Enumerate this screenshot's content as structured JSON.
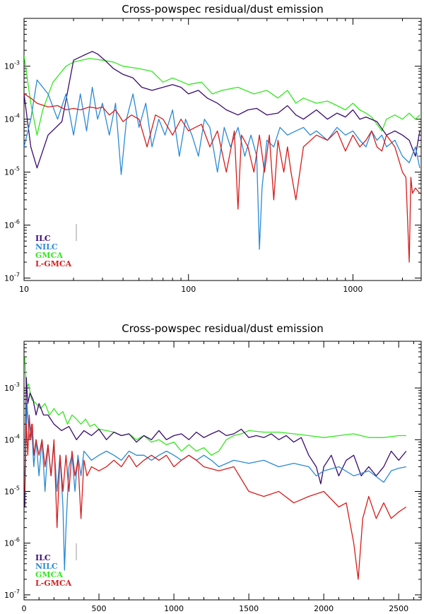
{
  "chart_data": [
    {
      "type": "line",
      "title": "Cross-powspec residual/dust emission",
      "xscale": "log",
      "yscale": "log",
      "xlim": [
        10,
        2600
      ],
      "ylim": [
        9e-08,
        0.008
      ],
      "xticks": [
        {
          "v": 10,
          "label": "10"
        },
        {
          "v": 100,
          "label": "100"
        },
        {
          "v": 1000,
          "label": "1000"
        }
      ],
      "yticks": [
        {
          "v": 1e-07,
          "m": "10",
          "e": "-7"
        },
        {
          "v": 1e-06,
          "m": "10",
          "e": "-6"
        },
        {
          "v": 1e-05,
          "m": "10",
          "e": "-5"
        },
        {
          "v": 0.0001,
          "m": "10",
          "e": "-4"
        },
        {
          "v": 0.001,
          "m": "10",
          "e": "-3"
        }
      ],
      "legend_position": "bottom-left",
      "series": [
        {
          "name": "ILC",
          "color": "#3b0a6e",
          "x": [
            10,
            11,
            12,
            14,
            17,
            20,
            23,
            26,
            28,
            31,
            35,
            40,
            46,
            52,
            60,
            70,
            80,
            90,
            100,
            115,
            130,
            150,
            170,
            200,
            230,
            260,
            300,
            350,
            400,
            450,
            500,
            600,
            700,
            800,
            900,
            1000,
            1100,
            1200,
            1400,
            1600,
            1800,
            2000,
            2200,
            2400,
            2550
          ],
          "y": [
            0.0003,
            3e-05,
            1.2e-05,
            5e-05,
            9e-05,
            0.0013,
            0.0016,
            0.0019,
            0.0017,
            0.0013,
            0.0009,
            0.0007,
            0.0006,
            0.0004,
            0.00035,
            0.0004,
            0.00045,
            0.0004,
            0.0003,
            0.00035,
            0.00025,
            0.0002,
            0.00015,
            0.00012,
            0.00015,
            0.00016,
            0.00012,
            0.00013,
            0.00018,
            0.00012,
            0.0001,
            0.00015,
            0.0001,
            0.00013,
            0.00011,
            0.00015,
            0.0001,
            0.00011,
            9e-05,
            5e-05,
            6e-05,
            5e-05,
            4e-05,
            2e-05,
            6e-05
          ]
        },
        {
          "name": "NILC",
          "color": "#2a8ad4",
          "x": [
            10,
            11,
            12,
            14,
            16,
            18,
            20,
            22,
            24,
            26,
            28,
            30,
            33,
            36,
            39,
            42,
            46,
            50,
            55,
            60,
            66,
            72,
            80,
            88,
            96,
            105,
            115,
            125,
            135,
            150,
            165,
            180,
            200,
            220,
            240,
            260,
            270,
            280,
            300,
            330,
            360,
            400,
            450,
            500,
            550,
            600,
            700,
            800,
            900,
            1000,
            1100,
            1200,
            1300,
            1400,
            1500,
            1600,
            1800,
            2000,
            2200,
            2400,
            2550
          ],
          "y": [
            3e-05,
            0.0001,
            0.00055,
            0.0003,
            0.0001,
            0.0003,
            5e-05,
            0.0003,
            6e-05,
            0.0004,
            0.0001,
            0.0002,
            5e-05,
            0.0002,
            9e-06,
            0.0001,
            0.0003,
            7e-05,
            0.0002,
            3e-05,
            0.0001,
            5e-05,
            0.00015,
            2e-05,
            0.0001,
            5e-05,
            2e-05,
            0.0001,
            7e-05,
            1e-05,
            7e-05,
            3e-05,
            7e-05,
            2e-05,
            5e-05,
            2e-05,
            3.5e-07,
            5e-06,
            4e-05,
            3e-05,
            7e-05,
            5e-05,
            6e-05,
            7e-05,
            5e-05,
            6e-05,
            4e-05,
            7e-05,
            5e-05,
            6e-05,
            4e-05,
            3e-05,
            6e-05,
            4e-05,
            5e-05,
            3e-05,
            4e-05,
            2e-05,
            1.5e-05,
            3e-05,
            1.2e-05
          ]
        },
        {
          "name": "GMCA",
          "color": "#33e81f",
          "x": [
            10,
            11,
            12,
            13,
            15,
            18,
            20,
            25,
            30,
            35,
            40,
            50,
            60,
            70,
            80,
            100,
            120,
            140,
            160,
            200,
            250,
            300,
            350,
            400,
            450,
            500,
            600,
            700,
            800,
            900,
            1000,
            1100,
            1200,
            1300,
            1400,
            1500,
            1600,
            1800,
            2000,
            2200,
            2400,
            2550
          ],
          "y": [
            0.0016,
            0.0002,
            5e-05,
            0.00015,
            0.0005,
            0.001,
            0.0012,
            0.0014,
            0.0013,
            0.0012,
            0.001,
            0.0009,
            0.0008,
            0.0005,
            0.0006,
            0.00045,
            0.0005,
            0.0003,
            0.00035,
            0.0004,
            0.0003,
            0.00035,
            0.00025,
            0.00035,
            0.0002,
            0.00025,
            0.0002,
            0.00022,
            0.00018,
            0.00015,
            0.0002,
            0.00015,
            0.00013,
            0.00011,
            8e-05,
            6e-05,
            0.0001,
            0.00012,
            0.0001,
            0.00013,
            0.0001,
            0.00012
          ]
        },
        {
          "name": "L-GMCA",
          "color": "#d81c1c",
          "x": [
            10,
            11,
            12,
            14,
            16,
            18,
            20,
            22,
            25,
            28,
            30,
            33,
            36,
            40,
            45,
            50,
            56,
            63,
            70,
            80,
            90,
            100,
            110,
            120,
            135,
            150,
            170,
            190,
            200,
            210,
            230,
            250,
            270,
            290,
            310,
            330,
            350,
            380,
            400,
            420,
            450,
            500,
            600,
            700,
            800,
            900,
            1000,
            1100,
            1200,
            1300,
            1400,
            1500,
            1600,
            1800,
            2000,
            2100,
            2200,
            2250,
            2300,
            2400,
            2550
          ],
          "y": [
            0.0003,
            0.00025,
            0.0002,
            0.00017,
            0.00018,
            0.00015,
            0.00016,
            0.00015,
            0.00017,
            0.00016,
            0.00017,
            0.00012,
            0.00015,
            9e-05,
            0.00012,
            0.0001,
            3e-05,
            0.00012,
            0.0001,
            5e-05,
            0.0001,
            6e-05,
            7e-05,
            8e-05,
            3e-05,
            6e-05,
            1e-05,
            6e-05,
            2e-06,
            5e-05,
            3e-05,
            1e-05,
            5e-05,
            1e-05,
            5e-05,
            3e-06,
            4e-05,
            1e-05,
            3e-05,
            1e-05,
            3e-06,
            3e-05,
            5e-05,
            4e-05,
            6e-05,
            2.5e-05,
            5e-05,
            3e-05,
            4e-05,
            6e-05,
            3e-05,
            2.5e-05,
            5e-05,
            3e-05,
            1e-05,
            8e-06,
            2e-07,
            8e-06,
            4e-06,
            5e-06,
            4e-06
          ]
        }
      ],
      "legend": [
        "ILC",
        "NILC",
        "GMCA",
        "L-GMCA"
      ]
    },
    {
      "type": "line",
      "title": "Cross-powspec residual/dust emission",
      "xscale": "linear",
      "yscale": "log",
      "xlim": [
        0,
        2650
      ],
      "ylim": [
        8e-08,
        0.008
      ],
      "xticks": [
        {
          "v": 0,
          "label": "0"
        },
        {
          "v": 500,
          "label": "500"
        },
        {
          "v": 1000,
          "label": "1000"
        },
        {
          "v": 1500,
          "label": "1500"
        },
        {
          "v": 2000,
          "label": "2000"
        },
        {
          "v": 2500,
          "label": "2500"
        }
      ],
      "yticks": [
        {
          "v": 1e-07,
          "m": "10",
          "e": "-7"
        },
        {
          "v": 1e-06,
          "m": "10",
          "e": "-6"
        },
        {
          "v": 1e-05,
          "m": "10",
          "e": "-5"
        },
        {
          "v": 0.0001,
          "m": "10",
          "e": "-4"
        },
        {
          "v": 0.001,
          "m": "10",
          "e": "-3"
        }
      ],
      "legend_position": "bottom-left",
      "series": [
        {
          "name": "ILC",
          "color": "#3b0a6e",
          "x": [
            5,
            15,
            25,
            40,
            60,
            80,
            100,
            130,
            160,
            200,
            250,
            300,
            350,
            400,
            450,
            500,
            550,
            600,
            650,
            700,
            750,
            800,
            850,
            900,
            950,
            1000,
            1050,
            1100,
            1150,
            1200,
            1250,
            1300,
            1350,
            1400,
            1450,
            1500,
            1550,
            1600,
            1650,
            1700,
            1750,
            1800,
            1850,
            1900,
            1950,
            1980,
            2000,
            2050,
            2100,
            2150,
            2200,
            2250,
            2300,
            2350,
            2400,
            2450,
            2500,
            2550
          ],
          "y": [
            5e-06,
            0.0016,
            0.0005,
            0.0008,
            0.0006,
            0.0003,
            0.0005,
            0.0003,
            0.0003,
            0.0002,
            0.00015,
            0.00018,
            0.0001,
            0.00015,
            0.00012,
            0.00016,
            0.0001,
            0.00014,
            0.00012,
            0.00013,
            9e-05,
            0.00012,
            0.0001,
            0.00015,
            0.0001,
            0.00012,
            0.00013,
            0.0001,
            0.00014,
            0.00011,
            0.00013,
            0.00015,
            0.00012,
            0.00013,
            0.00016,
            0.00011,
            0.00012,
            0.00011,
            0.00013,
            0.0001,
            0.00012,
            9e-05,
            0.00011,
            5e-05,
            3e-05,
            1.4e-05,
            3e-05,
            5e-05,
            2e-05,
            4e-05,
            5e-05,
            2e-05,
            3e-05,
            2e-05,
            3e-05,
            6e-05,
            4e-05,
            6e-05
          ]
        },
        {
          "name": "NILC",
          "color": "#2a8ad4",
          "x": [
            5,
            20,
            35,
            50,
            65,
            80,
            100,
            120,
            140,
            160,
            180,
            200,
            220,
            240,
            260,
            270,
            280,
            300,
            320,
            340,
            360,
            380,
            400,
            450,
            500,
            550,
            600,
            650,
            700,
            750,
            800,
            850,
            900,
            950,
            1000,
            1050,
            1100,
            1150,
            1200,
            1250,
            1300,
            1400,
            1500,
            1600,
            1700,
            1800,
            1900,
            1950,
            2000,
            2100,
            2200,
            2300,
            2400,
            2450,
            2500,
            2550
          ],
          "y": [
            2e-05,
            0.0005,
            0.0001,
            0.0002,
            3e-05,
            0.0001,
            2e-05,
            0.0001,
            1e-05,
            8e-05,
            2e-05,
            8e-05,
            1e-05,
            5e-05,
            5e-06,
            3e-07,
            2e-06,
            3e-05,
            5e-05,
            1e-05,
            5e-05,
            2e-05,
            6e-05,
            4e-05,
            5e-05,
            6e-05,
            5e-05,
            4e-05,
            6e-05,
            5e-05,
            5e-05,
            4e-05,
            5e-05,
            6e-05,
            5e-05,
            4e-05,
            5e-05,
            4e-05,
            5e-05,
            4e-05,
            3e-05,
            4e-05,
            3.5e-05,
            4e-05,
            3e-05,
            3.5e-05,
            3e-05,
            2e-05,
            2.5e-05,
            3e-05,
            2e-05,
            2.5e-05,
            1.5e-05,
            2.5e-05,
            2.8e-05,
            3e-05
          ]
        },
        {
          "name": "GMCA",
          "color": "#33e81f",
          "x": [
            5,
            15,
            30,
            50,
            80,
            110,
            140,
            170,
            200,
            230,
            260,
            290,
            320,
            350,
            380,
            410,
            440,
            470,
            500,
            550,
            600,
            650,
            700,
            750,
            800,
            850,
            900,
            950,
            1000,
            1050,
            1100,
            1150,
            1200,
            1250,
            1300,
            1350,
            1400,
            1450,
            1500,
            1600,
            1700,
            1800,
            1900,
            2000,
            2100,
            2200,
            2300,
            2400,
            2500,
            2550
          ],
          "y": [
            0.004,
            0.001,
            0.0012,
            0.0006,
            0.0005,
            0.0004,
            0.0005,
            0.0003,
            0.0004,
            0.0003,
            0.00035,
            0.0002,
            0.0003,
            0.00025,
            0.0002,
            0.00025,
            0.00018,
            0.0002,
            0.00016,
            0.00015,
            0.00014,
            0.00012,
            0.00013,
            0.0001,
            0.00012,
            9e-05,
            0.0001,
            8e-05,
            9e-05,
            6e-05,
            8e-05,
            6e-05,
            7e-05,
            5e-05,
            6e-05,
            0.0001,
            0.00012,
            0.00013,
            0.00015,
            0.00014,
            0.00014,
            0.00013,
            0.00012,
            0.00011,
            0.00012,
            0.00013,
            0.00011,
            0.00011,
            0.00012,
            0.00012
          ]
        },
        {
          "name": "L-GMCA",
          "color": "#d81c1c",
          "x": [
            5,
            15,
            25,
            35,
            45,
            55,
            65,
            80,
            100,
            120,
            140,
            160,
            180,
            200,
            220,
            240,
            260,
            280,
            300,
            320,
            340,
            360,
            380,
            400,
            420,
            450,
            500,
            550,
            600,
            650,
            700,
            750,
            800,
            850,
            900,
            950,
            1000,
            1050,
            1100,
            1150,
            1200,
            1300,
            1400,
            1500,
            1600,
            1700,
            1800,
            1900,
            2000,
            2100,
            2150,
            2200,
            2230,
            2260,
            2300,
            2350,
            2400,
            2450,
            2500,
            2550
          ],
          "y": [
            1e-05,
            0.0002,
            5e-05,
            0.0003,
            0.0001,
            0.0002,
            5e-05,
            0.0001,
            5e-05,
            0.0001,
            3e-05,
            8e-05,
            2e-05,
            0.0001,
            2e-06,
            5e-05,
            1e-05,
            5e-05,
            1e-05,
            6e-05,
            2e-05,
            4e-05,
            3e-06,
            4e-05,
            2e-05,
            3e-05,
            2.5e-05,
            3e-05,
            4e-05,
            3e-05,
            5e-05,
            3e-05,
            4e-05,
            5e-05,
            4e-05,
            5e-05,
            3e-05,
            4e-05,
            5e-05,
            4e-05,
            3e-05,
            2.5e-05,
            3e-05,
            1e-05,
            8e-06,
            1e-05,
            6e-06,
            8e-06,
            1e-05,
            5e-06,
            6e-06,
            1e-06,
            2e-07,
            3e-06,
            8e-06,
            3e-06,
            6e-06,
            3e-06,
            4e-06,
            5e-06
          ]
        }
      ],
      "legend": [
        "ILC",
        "NILC",
        "GMCA",
        "L-GMCA"
      ]
    }
  ]
}
